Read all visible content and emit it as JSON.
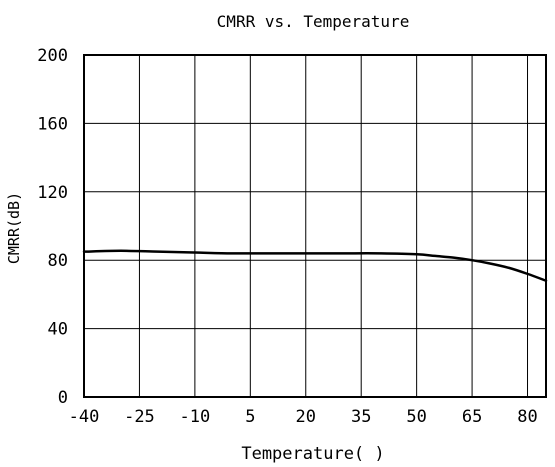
{
  "chart_data": {
    "type": "line",
    "title": "CMRR vs. Temperature",
    "xlabel": "Temperature(  )",
    "ylabel": "CMRR(dB)",
    "xlim": [
      -40,
      85
    ],
    "ylim": [
      0,
      200
    ],
    "x_ticks": [
      -40,
      -25,
      -10,
      5,
      20,
      35,
      50,
      65,
      80
    ],
    "y_ticks": [
      0,
      40,
      80,
      120,
      160,
      200
    ],
    "grid": true,
    "series": [
      {
        "x": [
          -40,
          -30,
          -20,
          -10,
          0,
          10,
          20,
          30,
          40,
          50,
          55,
          60,
          65,
          70,
          75,
          80,
          85
        ],
        "y": [
          85,
          85.5,
          85,
          84.5,
          84,
          84,
          84,
          84,
          84,
          83.5,
          82.5,
          81.5,
          80,
          78,
          75.5,
          72,
          68
        ]
      }
    ]
  }
}
